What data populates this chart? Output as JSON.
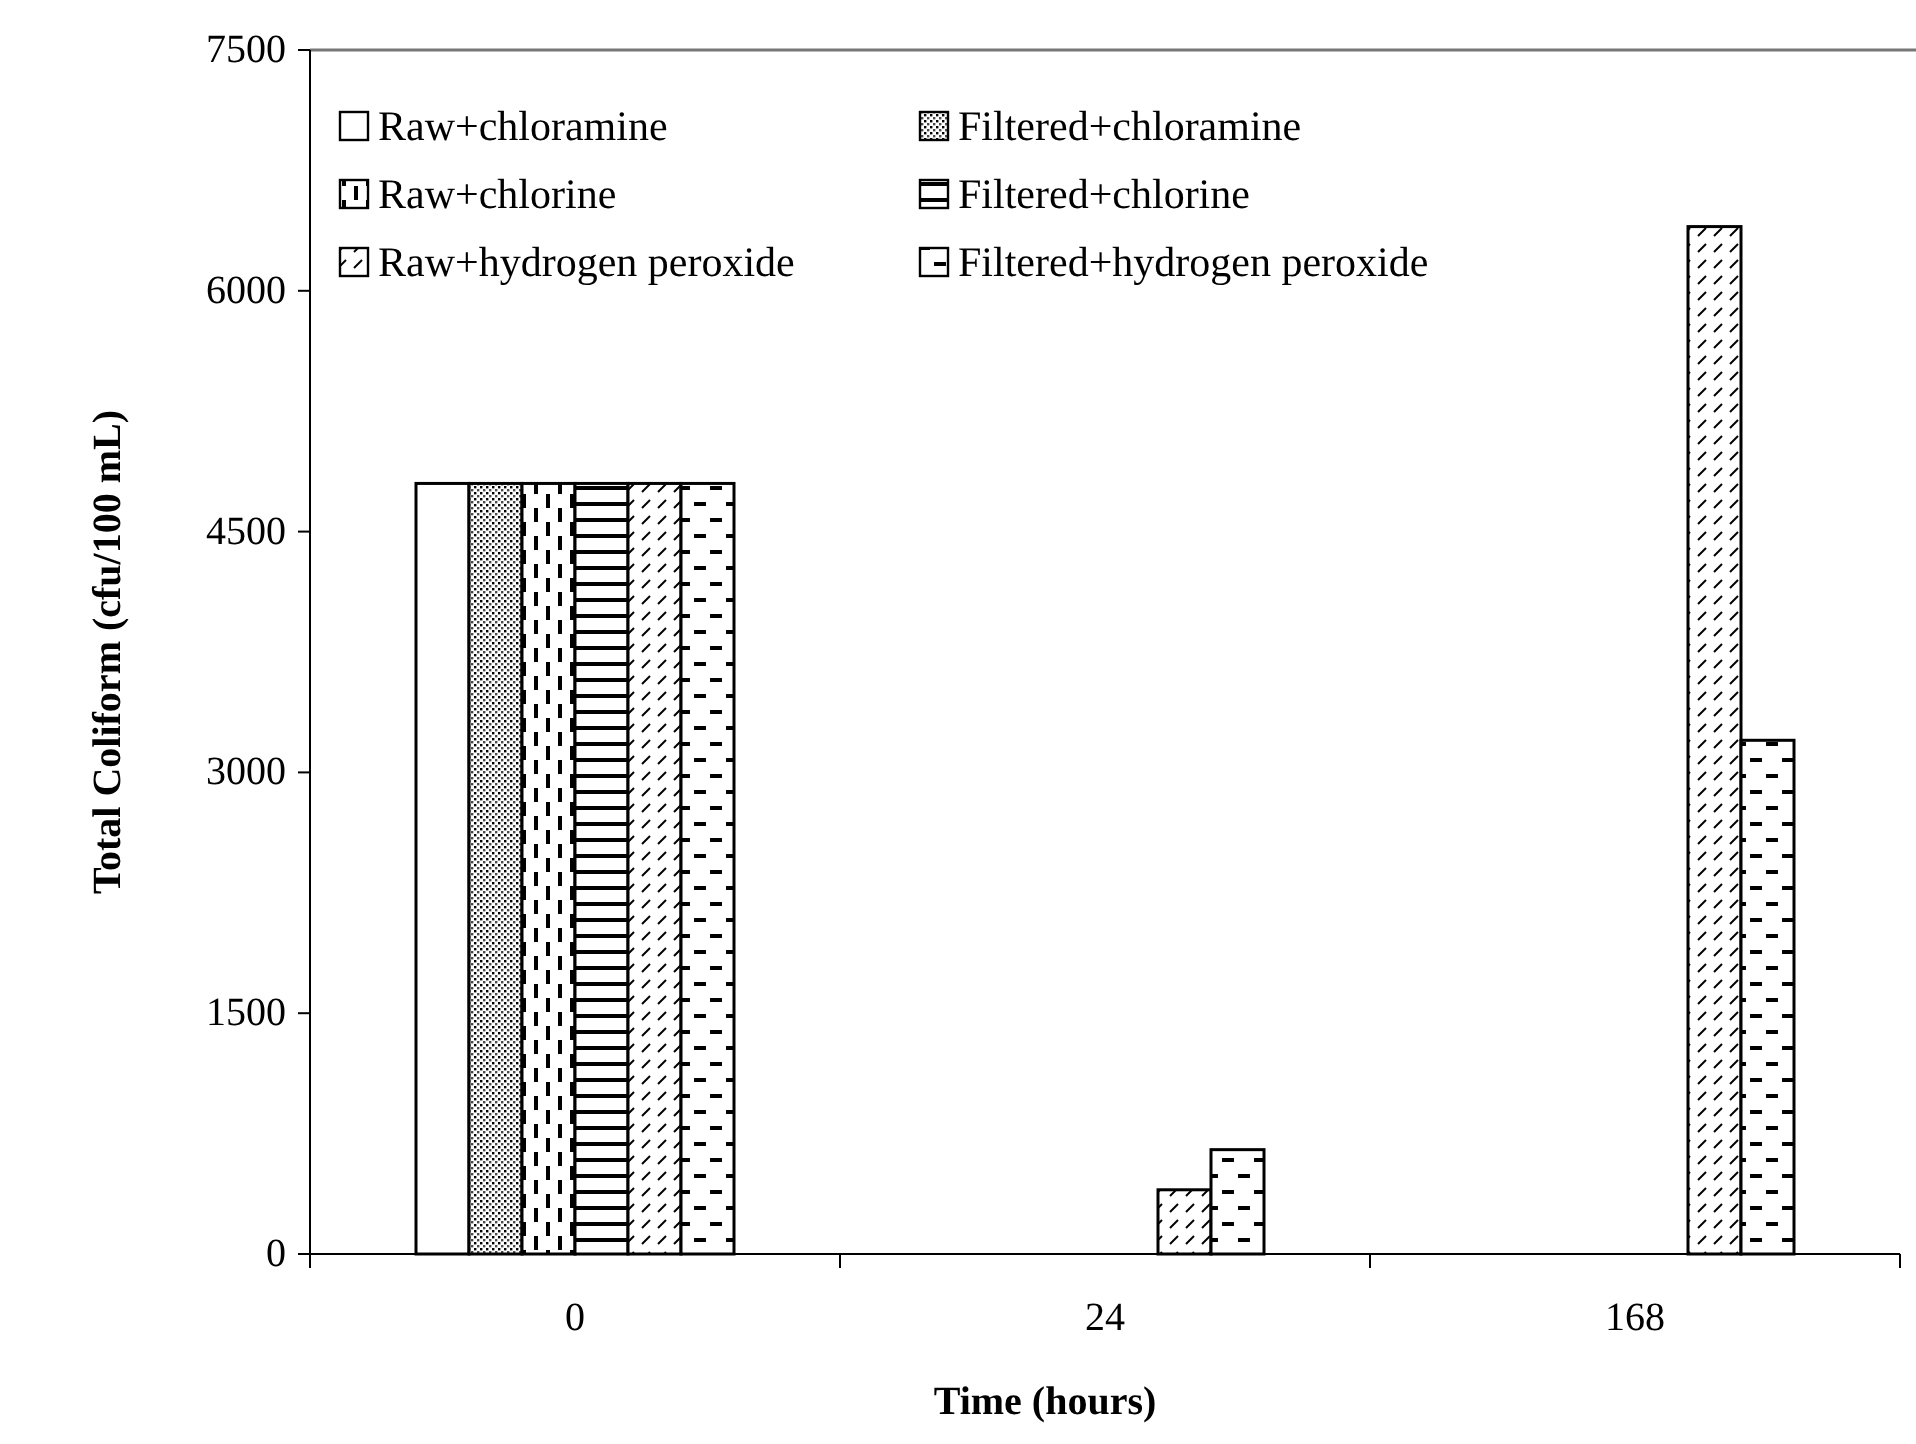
{
  "chart_data": {
    "type": "bar",
    "xlabel": "Time (hours)",
    "ylabel": "Total Coliform (cfu/100 mL)",
    "categories": [
      "0",
      "24",
      "168"
    ],
    "ylim": [
      0,
      7500
    ],
    "yticks": [
      0,
      1500,
      3000,
      4500,
      6000,
      7500
    ],
    "legend": "top left",
    "grid": false,
    "series": [
      {
        "name": "Raw+chloramine",
        "color": "#000000",
        "values": [
          4800,
          0,
          0
        ]
      },
      {
        "name": "Filtered+chloramine",
        "color": "#000000",
        "values": [
          4800,
          0,
          0
        ]
      },
      {
        "name": "Raw+chlorine",
        "color": "#000000",
        "values": [
          4800,
          0,
          0
        ]
      },
      {
        "name": "Filtered+chlorine",
        "color": "#000000",
        "values": [
          4800,
          0,
          0
        ]
      },
      {
        "name": "Raw+hydrogen peroxide",
        "color": "#000000",
        "values": [
          4800,
          400,
          6400
        ]
      },
      {
        "name": "Filtered+hydrogen peroxide",
        "color": "#000000",
        "values": [
          4800,
          650,
          3200
        ]
      }
    ]
  }
}
